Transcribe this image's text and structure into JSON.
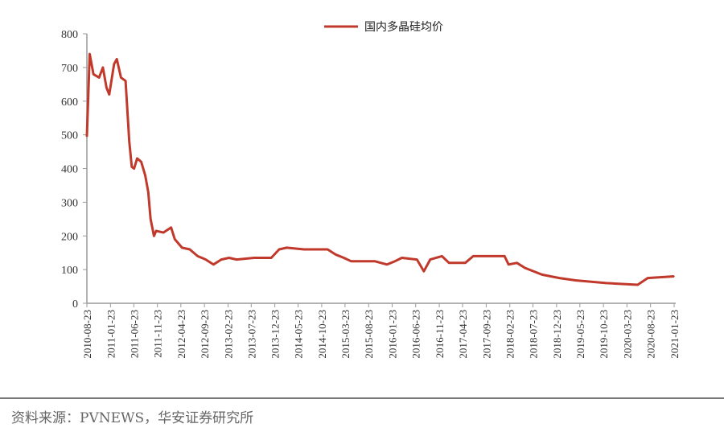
{
  "chart_data": {
    "type": "line",
    "title": "",
    "xlabel": "",
    "ylabel": "",
    "ylim": [
      0,
      800
    ],
    "yticks": [
      0,
      100,
      200,
      300,
      400,
      500,
      600,
      700,
      800
    ],
    "xlim": [
      "2010-08-23",
      "2021-01-23"
    ],
    "xticks": [
      "2010-08-23",
      "2011-01-23",
      "2011-06-23",
      "2011-11-23",
      "2012-04-23",
      "2012-09-23",
      "2013-02-23",
      "2013-07-23",
      "2013-12-23",
      "2014-05-23",
      "2014-10-23",
      "2015-03-23",
      "2015-08-23",
      "2016-01-23",
      "2016-06-23",
      "2016-11-23",
      "2017-04-23",
      "2017-09-23",
      "2018-02-23",
      "2018-07-23",
      "2018-12-23",
      "2019-05-23",
      "2019-10-23",
      "2020-03-23",
      "2020-08-23",
      "2021-01-23"
    ],
    "grid": false,
    "legend_position": "top-center",
    "series": [
      {
        "name": "国内多晶硅均价",
        "color": "#c0392b",
        "points": [
          [
            "2010-08-23",
            495
          ],
          [
            "2010-09-10",
            740
          ],
          [
            "2010-10-05",
            680
          ],
          [
            "2010-11-10",
            670
          ],
          [
            "2010-12-05",
            700
          ],
          [
            "2010-12-28",
            640
          ],
          [
            "2011-01-15",
            620
          ],
          [
            "2011-02-15",
            710
          ],
          [
            "2011-03-05",
            725
          ],
          [
            "2011-04-01",
            670
          ],
          [
            "2011-05-01",
            660
          ],
          [
            "2011-05-25",
            480
          ],
          [
            "2011-06-10",
            405
          ],
          [
            "2011-06-25",
            400
          ],
          [
            "2011-07-15",
            430
          ],
          [
            "2011-08-10",
            420
          ],
          [
            "2011-09-05",
            380
          ],
          [
            "2011-09-25",
            330
          ],
          [
            "2011-10-10",
            250
          ],
          [
            "2011-11-01",
            200
          ],
          [
            "2011-11-15",
            215
          ],
          [
            "2012-01-01",
            210
          ],
          [
            "2012-02-20",
            225
          ],
          [
            "2012-03-15",
            190
          ],
          [
            "2012-05-01",
            165
          ],
          [
            "2012-06-20",
            160
          ],
          [
            "2012-08-10",
            140
          ],
          [
            "2012-10-01",
            130
          ],
          [
            "2012-11-20",
            115
          ],
          [
            "2013-01-10",
            130
          ],
          [
            "2013-03-01",
            135
          ],
          [
            "2013-04-20",
            130
          ],
          [
            "2013-08-10",
            135
          ],
          [
            "2013-11-30",
            135
          ],
          [
            "2014-01-20",
            160
          ],
          [
            "2014-03-10",
            165
          ],
          [
            "2014-06-30",
            160
          ],
          [
            "2014-11-30",
            160
          ],
          [
            "2015-01-20",
            145
          ],
          [
            "2015-03-15",
            135
          ],
          [
            "2015-05-01",
            125
          ],
          [
            "2015-10-01",
            125
          ],
          [
            "2015-12-20",
            115
          ],
          [
            "2016-02-10",
            125
          ],
          [
            "2016-03-25",
            135
          ],
          [
            "2016-07-01",
            130
          ],
          [
            "2016-08-15",
            95
          ],
          [
            "2016-09-25",
            130
          ],
          [
            "2016-12-10",
            140
          ],
          [
            "2017-01-25",
            120
          ],
          [
            "2017-05-10",
            120
          ],
          [
            "2017-07-01",
            140
          ],
          [
            "2017-10-20",
            140
          ],
          [
            "2018-01-20",
            140
          ],
          [
            "2018-02-15",
            115
          ],
          [
            "2018-04-10",
            120
          ],
          [
            "2018-06-01",
            105
          ],
          [
            "2018-09-20",
            85
          ],
          [
            "2019-01-10",
            75
          ],
          [
            "2019-04-25",
            68
          ],
          [
            "2019-11-10",
            60
          ],
          [
            "2020-06-01",
            55
          ],
          [
            "2020-08-05",
            75
          ],
          [
            "2021-01-23",
            80
          ]
        ]
      }
    ]
  },
  "source": "资料来源：PVNEWS，华安证券研究所"
}
